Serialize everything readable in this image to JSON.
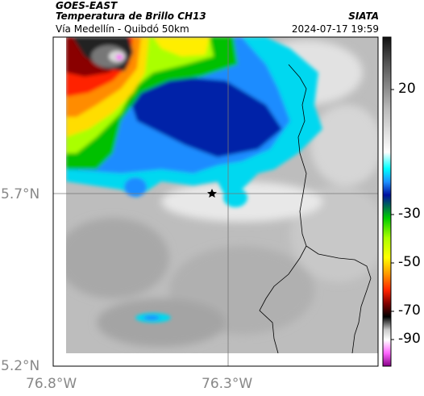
{
  "header": {
    "title": "GOES-EAST",
    "product": "Temperatura de Brillo CH13",
    "organization": "SIATA",
    "subtitle": "Vía Medellín - Quibdó 50km",
    "datetime": "2024-07-17 19:59"
  },
  "map": {
    "lat_ticks": [
      "5.7°N",
      "5.2°N"
    ],
    "lon_ticks": [
      "76.8°W",
      "76.3°W"
    ],
    "marker": "star-marker"
  },
  "colorbar": {
    "labels": [
      "20",
      "-30",
      "-50",
      "-70",
      "-90"
    ],
    "gradient": [
      {
        "stop": 0.0,
        "color": "#111111"
      },
      {
        "stop": 0.08,
        "color": "#555555"
      },
      {
        "stop": 0.22,
        "color": "#bbbbbb"
      },
      {
        "stop": 0.35,
        "color": "#ffffff"
      },
      {
        "stop": 0.4,
        "color": "#00ffff"
      },
      {
        "stop": 0.44,
        "color": "#1e90ff"
      },
      {
        "stop": 0.48,
        "color": "#0010a0"
      },
      {
        "stop": 0.55,
        "color": "#00cc00"
      },
      {
        "stop": 0.61,
        "color": "#aaff00"
      },
      {
        "stop": 0.67,
        "color": "#ffff00"
      },
      {
        "stop": 0.72,
        "color": "#ff9900"
      },
      {
        "stop": 0.77,
        "color": "#ff2200"
      },
      {
        "stop": 0.81,
        "color": "#800000"
      },
      {
        "stop": 0.85,
        "color": "#000000"
      },
      {
        "stop": 0.89,
        "color": "#cccccc"
      },
      {
        "stop": 0.92,
        "color": "#ffffff"
      },
      {
        "stop": 0.96,
        "color": "#ff66ff"
      },
      {
        "stop": 1.0,
        "color": "#880088"
      }
    ]
  }
}
